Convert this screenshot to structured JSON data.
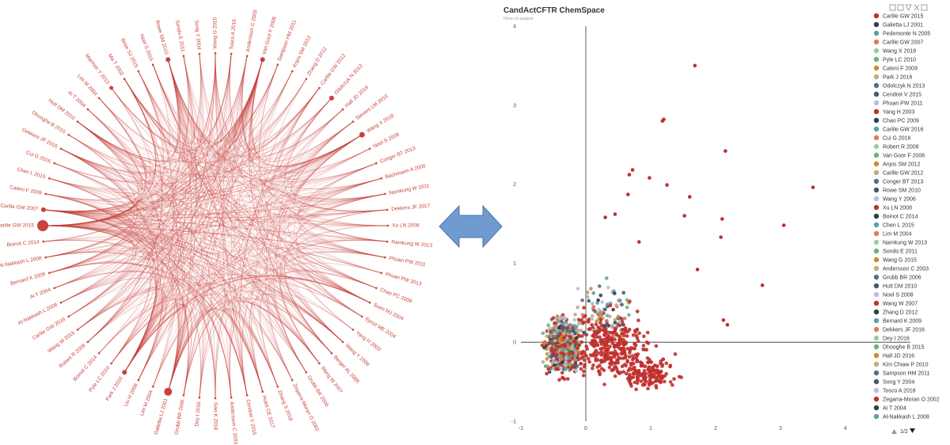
{
  "scatter": {
    "title": "CandActCFTR ChemSpace",
    "subtitle": "Hover to analyze",
    "pager": "1/2",
    "chart_data": {
      "type": "scatter",
      "xlim": [
        -1,
        5
      ],
      "ylim": [
        -1,
        4
      ],
      "x_ticks": [
        -1,
        0,
        1,
        2,
        3,
        4
      ],
      "y_ticks": [
        -1,
        0,
        1,
        2,
        3,
        4
      ],
      "grid": false,
      "legend_position": "right",
      "series": [
        {
          "name": "Carlile GW 2015",
          "color": "#c0302e"
        },
        {
          "name": "Galietta LJ 2001",
          "color": "#2f3e4e"
        },
        {
          "name": "Pedemonte N 2005",
          "color": "#5f9ea8"
        },
        {
          "name": "Carlile GW 2007",
          "color": "#e07a5f"
        },
        {
          "name": "Wang X 2018",
          "color": "#9ec9b0"
        },
        {
          "name": "Pyle LC 2010",
          "color": "#6fae84"
        },
        {
          "name": "Cateni F 2009",
          "color": "#d08a2a"
        },
        {
          "name": "Park J 2016",
          "color": "#c9a58a"
        },
        {
          "name": "Odolczyk N 2013",
          "color": "#5d6d76"
        },
        {
          "name": "Cendret V 2015",
          "color": "#3e5a6e"
        },
        {
          "name": "Phuan PW 2011",
          "color": "#b9bfd4"
        },
        {
          "name": "Yang H 2003",
          "color": "#c0302e"
        },
        {
          "name": "Chao PC 2009",
          "color": "#2f3e4e"
        },
        {
          "name": "Carlile GW 2016",
          "color": "#5f9ea8"
        },
        {
          "name": "Cui G 2016",
          "color": "#e07a5f"
        },
        {
          "name": "Robert R 2008",
          "color": "#9ec9b0"
        },
        {
          "name": "Van Goor F 2006",
          "color": "#6fae84"
        },
        {
          "name": "Anjos SM 2012",
          "color": "#d08a2a"
        },
        {
          "name": "Carlile GW 2012",
          "color": "#c9a58a"
        },
        {
          "name": "Conger BT 2013",
          "color": "#5d6d76"
        },
        {
          "name": "Rowe SM 2010",
          "color": "#3e5a6e"
        },
        {
          "name": "Wang Y 2006",
          "color": "#b9bfd4"
        },
        {
          "name": "Xu LN 2008",
          "color": "#c0302e"
        },
        {
          "name": "Boinot C 2014",
          "color": "#2f3e4e"
        },
        {
          "name": "Chen L 2015",
          "color": "#5f9ea8"
        },
        {
          "name": "Lim M 2004",
          "color": "#e07a5f"
        },
        {
          "name": "Namkung W 2013",
          "color": "#9ec9b0"
        },
        {
          "name": "Sondo E 2011",
          "color": "#6fae84"
        },
        {
          "name": "Wang G 2015",
          "color": "#d08a2a"
        },
        {
          "name": "Andersson C 2003",
          "color": "#c9a58a"
        },
        {
          "name": "Grubb BR 2006",
          "color": "#5d6d76"
        },
        {
          "name": "Hutt DM 2010",
          "color": "#3e5a6e"
        },
        {
          "name": "Noel S 2008",
          "color": "#b9bfd4"
        },
        {
          "name": "Wang W 2007",
          "color": "#c0302e"
        },
        {
          "name": "Zhang D 2012",
          "color": "#2f3e4e"
        },
        {
          "name": "Bernard K 2009",
          "color": "#5f9ea8"
        },
        {
          "name": "Dekkers JF 2016",
          "color": "#e07a5f"
        },
        {
          "name": "Dey I 2016",
          "color": "#9ec9b0"
        },
        {
          "name": "Dhooghe B 2015",
          "color": "#6fae84"
        },
        {
          "name": "Hall JD 2016",
          "color": "#d08a2a"
        },
        {
          "name": "Kim Chiaw P 2010",
          "color": "#c9a58a"
        },
        {
          "name": "Sampson HM 2011",
          "color": "#5d6d76"
        },
        {
          "name": "Song Y 2004",
          "color": "#3e5a6e"
        },
        {
          "name": "Tosco A 2016",
          "color": "#b9bfd4"
        },
        {
          "name": "Zegarra-Moran O 2002",
          "color": "#c0302e"
        },
        {
          "name": "Ai T 2004",
          "color": "#2f3e4e"
        },
        {
          "name": "Al-Nakkash L 2008",
          "color": "#5f9ea8"
        }
      ],
      "outliers": [
        {
          "x": 1.68,
          "y": 3.5
        },
        {
          "x": 1.2,
          "y": 2.82
        },
        {
          "x": 1.18,
          "y": 2.8
        },
        {
          "x": 2.15,
          "y": 2.42
        },
        {
          "x": 3.5,
          "y": 1.96
        },
        {
          "x": 1.25,
          "y": 1.99
        },
        {
          "x": 0.98,
          "y": 2.08
        },
        {
          "x": 1.6,
          "y": 1.84
        },
        {
          "x": 0.72,
          "y": 2.18
        },
        {
          "x": 0.67,
          "y": 2.12
        },
        {
          "x": 0.65,
          "y": 1.87
        },
        {
          "x": 1.52,
          "y": 1.6
        },
        {
          "x": 3.05,
          "y": 1.48
        },
        {
          "x": 2.1,
          "y": 1.56
        },
        {
          "x": 2.08,
          "y": 1.33
        },
        {
          "x": 0.3,
          "y": 1.58
        },
        {
          "x": 0.45,
          "y": 1.62
        },
        {
          "x": 0.82,
          "y": 1.27
        },
        {
          "x": 1.72,
          "y": 0.92
        },
        {
          "x": 2.72,
          "y": 0.72
        },
        {
          "x": 2.18,
          "y": 0.22
        },
        {
          "x": 2.12,
          "y": 0.28
        }
      ]
    }
  },
  "network": {
    "chart_data": {
      "type": "chord",
      "nodes": [
        "Carlile GW 2015",
        "Carlile GW 2007",
        "Cateni F 2009",
        "Chen L 2015",
        "Cui G 2016",
        "Dekkers JF 2016",
        "Dhooghe B 2015",
        "Hutt DM 2010",
        "Ai T 2004",
        "Lim M 2004",
        "Marmon Y 2015",
        "Ma T 2002",
        "Bose SJ 2015",
        "Noel S 2015",
        "Rowe SM 2010",
        "Sondo E 2011",
        "Song Y 2004",
        "Wang G 2015",
        "Tosco A 2016",
        "Andersson C 2003",
        "Van Goor F 2006",
        "Sampson HM 2011",
        "Anjos SM 2012",
        "Zhang D 2012",
        "Carlile GW 2012",
        "Odolczyk N 2013",
        "Hall JD 2016",
        "Stevers LM 2016",
        "Wang X 2018",
        "Noel S 2008",
        "Conger BT 2013",
        "Bachmann A 2000",
        "Namkung W 2011",
        "Dekkers JF 2017",
        "Xu LN 2008",
        "Namkung W 2013",
        "Phuan PW 2011",
        "Phuan PW 2013",
        "Chao PC 2009",
        "Suen MJ 2004",
        "Ejmzt ME 2004",
        "Yang H 2003",
        "Wang Y 2006",
        "Berger AL 2005",
        "Wang W 2007",
        "Grubb BR 2006",
        "Zegarra-Moran O 2002",
        "Zhang S 2018",
        "Hulot CE 2017",
        "Cendret V 2015",
        "Andersson C 2003",
        "Gao K 2018",
        "Dey I 2016",
        "Grubb BR 2006",
        "Galietta LJ 2001",
        "Lim M 2004",
        "Liu H 2008",
        "Park J 2016",
        "Pyle LC 2010",
        "Boinot C 2014",
        "Robert R 2008",
        "Wang W 2016",
        "Carlile GW 2016",
        "Al-Nakkash L 2008",
        "Ai T 2004",
        "Bernard K 2009",
        "Al-Nakkash L 2008",
        "Boinot C 2014"
      ]
    }
  }
}
